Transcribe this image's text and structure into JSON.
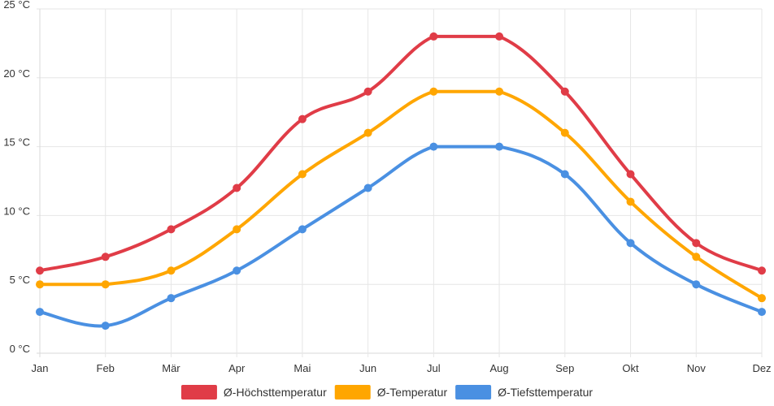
{
  "chart_data": {
    "type": "line",
    "title": "",
    "xlabel": "",
    "ylabel": "",
    "categories": [
      "Jan",
      "Feb",
      "Mär",
      "Apr",
      "Mai",
      "Jun",
      "Jul",
      "Aug",
      "Sep",
      "Okt",
      "Nov",
      "Dez"
    ],
    "y_unit": "°C",
    "ylim": [
      0,
      25
    ],
    "y_ticks": [
      {
        "value": 0,
        "label": "0 °C"
      },
      {
        "value": 5,
        "label": "5 °C"
      },
      {
        "value": 10,
        "label": "10 °C"
      },
      {
        "value": 15,
        "label": "15 °C"
      },
      {
        "value": 20,
        "label": "20 °C"
      },
      {
        "value": 25,
        "label": "25 °C"
      }
    ],
    "grid": true,
    "legend_position": "bottom",
    "series": [
      {
        "name": "Ø-Höchsttemperatur",
        "color": "#e03c47",
        "values": [
          6,
          7,
          9,
          12,
          17,
          19,
          23,
          23,
          19,
          13,
          8,
          6
        ]
      },
      {
        "name": "Ø-Temperatur",
        "color": "#ffa600",
        "values": [
          5,
          5,
          6,
          9,
          13,
          16,
          19,
          19,
          16,
          11,
          7,
          4
        ]
      },
      {
        "name": "Ø-Tiefsttemperatur",
        "color": "#4a90e2",
        "values": [
          3,
          2,
          4,
          6,
          9,
          12,
          15,
          15,
          13,
          8,
          5,
          3
        ]
      }
    ]
  }
}
